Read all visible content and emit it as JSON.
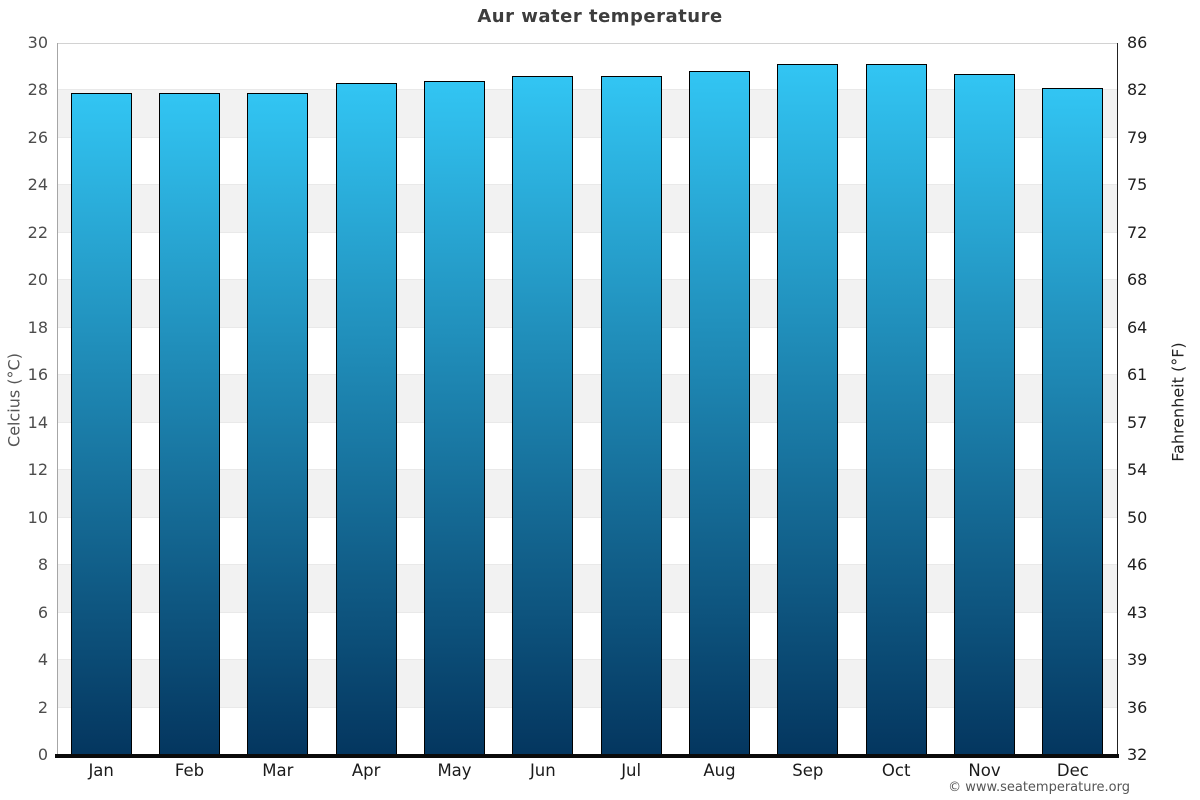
{
  "page": {
    "footer": "© www.seatemperature.org"
  },
  "chart_data": {
    "type": "bar",
    "title": "Aur water temperature",
    "categories": [
      "Jan",
      "Feb",
      "Mar",
      "Apr",
      "May",
      "Jun",
      "Jul",
      "Aug",
      "Sep",
      "Oct",
      "Nov",
      "Dec"
    ],
    "values": [
      27.9,
      27.9,
      27.9,
      28.3,
      28.4,
      28.6,
      28.6,
      28.8,
      29.1,
      29.1,
      28.7,
      28.1
    ],
    "unit": "°C",
    "ylabel_left": "Celcius (°C)",
    "ylabel_right": "Fahrenheit (°F)",
    "ylim": [
      0,
      30
    ],
    "yticks_celsius": [
      30,
      28,
      26,
      24,
      22,
      20,
      18,
      16,
      14,
      12,
      10,
      8,
      6,
      4,
      2,
      0
    ],
    "yticks_fahrenheit": [
      86,
      82,
      79,
      75,
      72,
      68,
      64,
      61,
      57,
      54,
      50,
      46,
      43,
      39,
      36,
      32
    ],
    "grid": "horizontal-bands-every-2C",
    "legend": "none",
    "colors": {
      "bar_gradient_top": "#32c5f3",
      "bar_gradient_bottom": "#04365f",
      "bar_border": "#000000",
      "band_light": "#ffffff",
      "band_dark": "#f2f2f2",
      "band_edge": "#e9e9e9",
      "axis_left_line": "#a6a6a6",
      "axis_right_line": "#222222",
      "axis_bottom_line": "#0a0a0a",
      "title_color": "#3d3d3d",
      "background": "#ffffff"
    }
  }
}
